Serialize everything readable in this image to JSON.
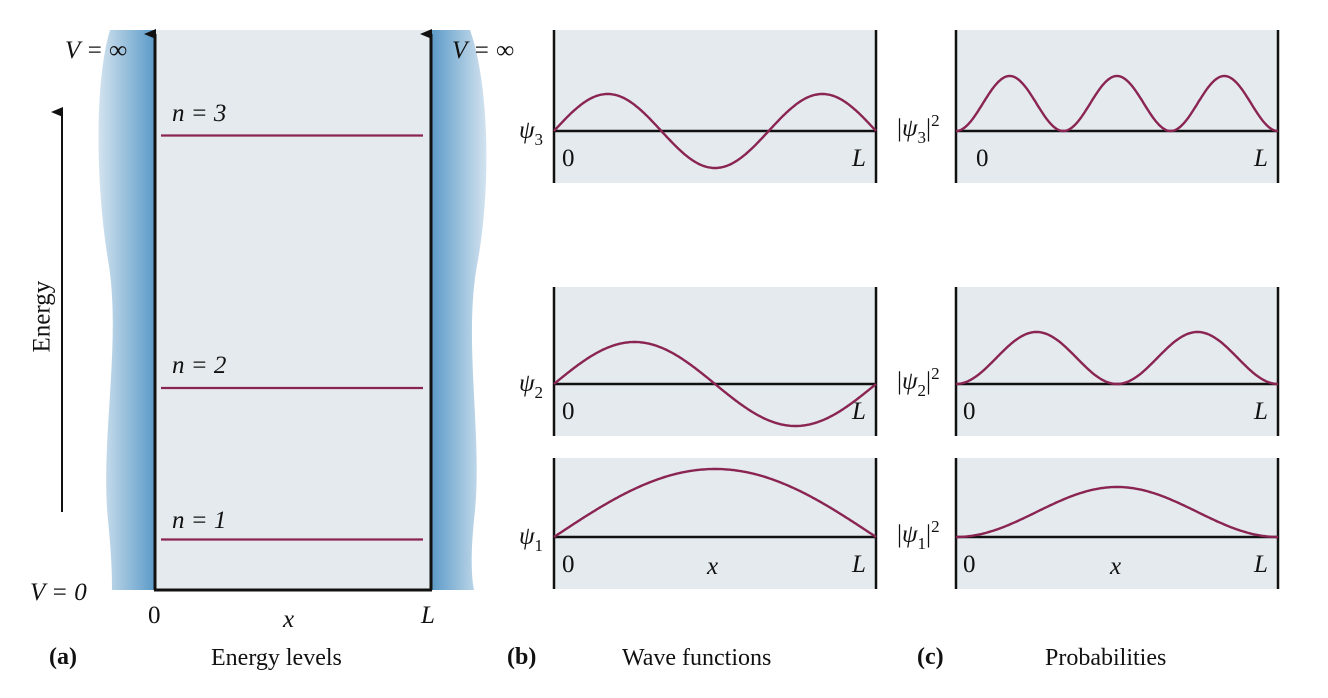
{
  "panel_a": {
    "potential_left": "V = ∞",
    "potential_right": "V = ∞",
    "potential_zero": "V = 0",
    "energy_axis_label": "Energy",
    "levels": [
      {
        "label": "n = 3",
        "n": 3
      },
      {
        "label": "n = 2",
        "n": 2
      },
      {
        "label": "n = 1",
        "n": 1
      }
    ],
    "x_axis": {
      "origin": "0",
      "variable": "x",
      "end": "L"
    },
    "caption_letter": "(a)",
    "caption_text": "Energy levels"
  },
  "panel_b": {
    "caption_letter": "(b)",
    "caption_text": "Wave functions",
    "plots": [
      {
        "symbol": "ψ",
        "subscript": "3",
        "n": 3,
        "start": "0",
        "end": "L",
        "x_label": ""
      },
      {
        "symbol": "ψ",
        "subscript": "2",
        "n": 2,
        "start": "0",
        "end": "L",
        "x_label": ""
      },
      {
        "symbol": "ψ",
        "subscript": "1",
        "n": 1,
        "start": "0",
        "end": "L",
        "x_label": "x"
      }
    ]
  },
  "panel_c": {
    "caption_letter": "(c)",
    "caption_text": "Probabilities",
    "plots": [
      {
        "symbol": "ψ",
        "subscript": "3",
        "power": "2",
        "n": 3,
        "start": "0",
        "end": "L",
        "x_label": ""
      },
      {
        "symbol": "ψ",
        "subscript": "2",
        "power": "2",
        "n": 2,
        "start": "0",
        "end": "L",
        "x_label": ""
      },
      {
        "symbol": "ψ",
        "subscript": "1",
        "power": "2",
        "n": 1,
        "start": "0",
        "end": "L",
        "x_label": "x"
      }
    ]
  },
  "colors": {
    "curve": "#8a2452",
    "box_fill": "#e4eaed",
    "wall_blue": "#5b9ac8",
    "wall_light": "#d3e3ef",
    "axis": "#111111"
  }
}
